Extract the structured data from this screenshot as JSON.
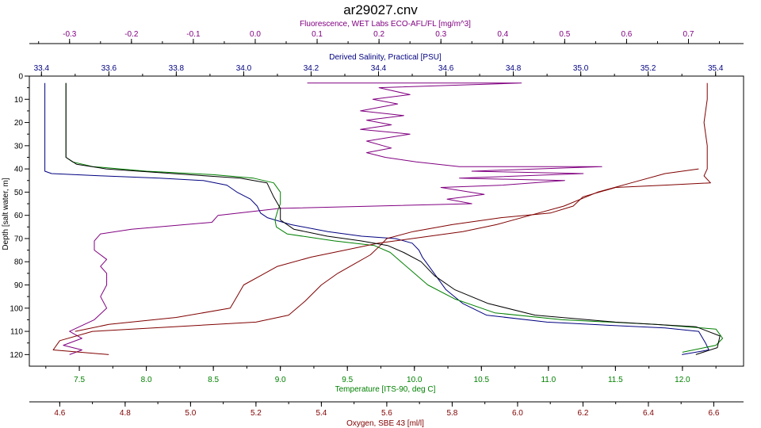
{
  "chart_data": {
    "type": "line",
    "title": "ar29027.cnv",
    "grid": false,
    "depth_axis": {
      "label": "Depth [salt water, m]",
      "range": [
        0,
        125
      ],
      "ticks": [
        "0",
        "10",
        "20",
        "30",
        "40",
        "50",
        "60",
        "70",
        "80",
        "90",
        "100",
        "110",
        "120"
      ],
      "tick_values": [
        0,
        10,
        20,
        30,
        40,
        50,
        60,
        70,
        80,
        90,
        100,
        110,
        120
      ],
      "direction": "down"
    },
    "axes": {
      "fluorescence": {
        "label": "Fluorescence, WET Labs ECO-AFL/FL [mg/m^3]",
        "position": "top",
        "color": "#800080",
        "range": [
          -0.365,
          0.789
        ],
        "ticks": [
          "-0.3",
          "-0.2",
          "-0.1",
          "0.0",
          "0.1",
          "0.2",
          "0.3",
          "0.4",
          "0.5",
          "0.6",
          "0.7"
        ],
        "tick_values": [
          -0.3,
          -0.2,
          -0.1,
          0.0,
          0.1,
          0.2,
          0.3,
          0.4,
          0.5,
          0.6,
          0.7
        ]
      },
      "salinity": {
        "label": "Derived Salinity, Practical [PSU]",
        "position": "top",
        "color": "#000080",
        "range": [
          33.364,
          35.483
        ],
        "ticks": [
          "33.4",
          "33.6",
          "33.8",
          "34.0",
          "34.2",
          "34.4",
          "34.6",
          "34.8",
          "35.0",
          "35.2",
          "35.4"
        ],
        "tick_values": [
          33.4,
          33.6,
          33.8,
          34.0,
          34.2,
          34.4,
          34.6,
          34.8,
          35.0,
          35.2,
          35.4
        ]
      },
      "temperature": {
        "label": "Temperature [ITS-90, deg C]",
        "position": "bottom",
        "color": "#008000",
        "range": [
          7.127,
          12.456
        ],
        "ticks": [
          "7.5",
          "8.0",
          "8.5",
          "9.0",
          "9.5",
          "10.0",
          "10.5",
          "11.0",
          "11.5",
          "12.0"
        ],
        "tick_values": [
          7.5,
          8.0,
          8.5,
          9.0,
          9.5,
          10.0,
          10.5,
          11.0,
          11.5,
          12.0
        ]
      },
      "oxygen": {
        "label": "Oxygen, SBE 43 [ml/l]",
        "position": "bottom",
        "color": "#800000",
        "range": [
          4.507,
          6.691
        ],
        "ticks": [
          "4.6",
          "4.8",
          "5.0",
          "5.2",
          "5.4",
          "5.6",
          "5.8",
          "6.0",
          "6.2",
          "6.4",
          "6.6"
        ],
        "tick_values": [
          4.6,
          4.8,
          5.0,
          5.2,
          5.4,
          5.6,
          5.8,
          6.0,
          6.2,
          6.4,
          6.6
        ]
      }
    },
    "series": [
      {
        "axis": "fluorescence",
        "color": "#800080",
        "points": [
          [
            0.084,
            3
          ],
          [
            0.43,
            3
          ],
          [
            0.2,
            5
          ],
          [
            0.25,
            8
          ],
          [
            0.19,
            10
          ],
          [
            0.23,
            12
          ],
          [
            0.17,
            15
          ],
          [
            0.24,
            17
          ],
          [
            0.18,
            19
          ],
          [
            0.22,
            21
          ],
          [
            0.17,
            23
          ],
          [
            0.25,
            25
          ],
          [
            0.18,
            28
          ],
          [
            0.22,
            31
          ],
          [
            0.18,
            33
          ],
          [
            0.21,
            35
          ],
          [
            0.26,
            37
          ],
          [
            0.33,
            39
          ],
          [
            0.56,
            39
          ],
          [
            0.35,
            41
          ],
          [
            0.53,
            42
          ],
          [
            0.33,
            44
          ],
          [
            0.5,
            45
          ],
          [
            0.4,
            47
          ],
          [
            0.3,
            48
          ],
          [
            0.37,
            51
          ],
          [
            0.31,
            53
          ],
          [
            0.35,
            55
          ],
          [
            0.04,
            57
          ],
          [
            -0.06,
            60
          ],
          [
            -0.07,
            63
          ],
          [
            -0.2,
            66
          ],
          [
            -0.25,
            68
          ],
          [
            -0.26,
            71
          ],
          [
            -0.26,
            75
          ],
          [
            -0.24,
            79
          ],
          [
            -0.25,
            82
          ],
          [
            -0.24,
            85
          ],
          [
            -0.24,
            90
          ],
          [
            -0.25,
            95
          ],
          [
            -0.24,
            100
          ],
          [
            -0.26,
            105
          ],
          [
            -0.3,
            110
          ],
          [
            -0.28,
            113
          ],
          [
            -0.31,
            116
          ],
          [
            -0.28,
            118
          ],
          [
            -0.3,
            120
          ]
        ]
      },
      {
        "axis": "salinity",
        "color": "#000080",
        "points": [
          [
            33.41,
            3
          ],
          [
            33.41,
            17
          ],
          [
            33.41,
            35
          ],
          [
            33.41,
            41
          ],
          [
            33.43,
            42
          ],
          [
            33.58,
            43
          ],
          [
            33.75,
            44
          ],
          [
            33.88,
            45
          ],
          [
            33.95,
            47
          ],
          [
            33.98,
            50
          ],
          [
            34.02,
            53
          ],
          [
            34.04,
            56
          ],
          [
            34.05,
            59
          ],
          [
            34.07,
            61
          ],
          [
            34.14,
            64
          ],
          [
            34.25,
            67
          ],
          [
            34.35,
            69
          ],
          [
            34.45,
            70
          ],
          [
            34.5,
            72
          ],
          [
            34.52,
            75
          ],
          [
            34.53,
            78
          ],
          [
            34.55,
            82
          ],
          [
            34.57,
            86
          ],
          [
            34.6,
            92
          ],
          [
            34.65,
            98
          ],
          [
            34.72,
            103
          ],
          [
            34.9,
            106
          ],
          [
            35.1,
            107.5
          ],
          [
            35.25,
            108.5
          ],
          [
            35.35,
            110
          ],
          [
            35.37,
            115
          ],
          [
            35.38,
            118
          ],
          [
            35.3,
            120
          ]
        ]
      },
      {
        "axis": "temperature",
        "color": "#008000",
        "points": [
          [
            7.4,
            3
          ],
          [
            7.4,
            17
          ],
          [
            7.4,
            35
          ],
          [
            7.45,
            37
          ],
          [
            7.6,
            39
          ],
          [
            8.0,
            41
          ],
          [
            8.5,
            42.5
          ],
          [
            8.8,
            44
          ],
          [
            8.95,
            46
          ],
          [
            9.0,
            50
          ],
          [
            9.0,
            55
          ],
          [
            8.98,
            58
          ],
          [
            8.96,
            62
          ],
          [
            8.97,
            65
          ],
          [
            9.05,
            68
          ],
          [
            9.4,
            71
          ],
          [
            9.7,
            73
          ],
          [
            9.82,
            76
          ],
          [
            9.9,
            80
          ],
          [
            10.0,
            85
          ],
          [
            10.1,
            90
          ],
          [
            10.3,
            96
          ],
          [
            10.6,
            102
          ],
          [
            11.1,
            105
          ],
          [
            11.8,
            107
          ],
          [
            12.25,
            109
          ],
          [
            12.3,
            113
          ],
          [
            12.25,
            116
          ],
          [
            12.0,
            119
          ]
        ]
      },
      {
        "axis": "oxygen",
        "color": "#800000",
        "points": [
          [
            6.58,
            3
          ],
          [
            6.58,
            10
          ],
          [
            6.57,
            20
          ],
          [
            6.58,
            30
          ],
          [
            6.58,
            40
          ],
          [
            6.57,
            43
          ],
          [
            6.59,
            46
          ],
          [
            6.45,
            47
          ],
          [
            6.3,
            48
          ],
          [
            6.2,
            52
          ],
          [
            6.17,
            56
          ],
          [
            6.1,
            59
          ],
          [
            5.95,
            61
          ],
          [
            5.8,
            64
          ],
          [
            5.68,
            67
          ],
          [
            5.6,
            70
          ],
          [
            5.58,
            73
          ],
          [
            5.55,
            77
          ],
          [
            5.5,
            81
          ],
          [
            5.45,
            85
          ],
          [
            5.4,
            90
          ],
          [
            5.35,
            97
          ],
          [
            5.3,
            103
          ],
          [
            5.2,
            106
          ],
          [
            4.95,
            108
          ],
          [
            4.7,
            110
          ],
          [
            4.6,
            114
          ],
          [
            4.58,
            118
          ],
          [
            4.75,
            120
          ]
        ]
      },
      {
        "axis": "salinity",
        "color": "#800000",
        "points": [
          [
            35.35,
            40
          ],
          [
            35.25,
            42
          ],
          [
            35.15,
            46
          ],
          [
            35.05,
            50
          ],
          [
            34.95,
            56
          ],
          [
            34.85,
            60
          ],
          [
            34.75,
            64
          ],
          [
            34.65,
            67
          ],
          [
            34.5,
            70
          ],
          [
            34.4,
            72
          ],
          [
            34.3,
            75
          ],
          [
            34.2,
            78
          ],
          [
            34.1,
            82
          ],
          [
            34.05,
            86
          ],
          [
            34.0,
            90
          ],
          [
            33.98,
            95
          ],
          [
            33.96,
            100
          ],
          [
            33.8,
            104
          ],
          [
            33.6,
            107
          ],
          [
            33.5,
            110
          ]
        ]
      },
      {
        "axis": "temperature",
        "color": "#000000",
        "points": [
          [
            7.4,
            3
          ],
          [
            7.4,
            35
          ],
          [
            7.48,
            38
          ],
          [
            7.7,
            40
          ],
          [
            8.2,
            42
          ],
          [
            8.7,
            44
          ],
          [
            8.9,
            46
          ],
          [
            8.95,
            52
          ],
          [
            9.0,
            57
          ],
          [
            9.0,
            62
          ],
          [
            9.1,
            66
          ],
          [
            9.35,
            69
          ],
          [
            9.6,
            71
          ],
          [
            9.8,
            73
          ],
          [
            9.92,
            76
          ],
          [
            10.05,
            80
          ],
          [
            10.15,
            86
          ],
          [
            10.3,
            92
          ],
          [
            10.55,
            98
          ],
          [
            10.9,
            103
          ],
          [
            11.5,
            106
          ],
          [
            12.1,
            108
          ],
          [
            12.28,
            112
          ],
          [
            12.26,
            117
          ],
          [
            12.1,
            120
          ]
        ]
      }
    ]
  }
}
